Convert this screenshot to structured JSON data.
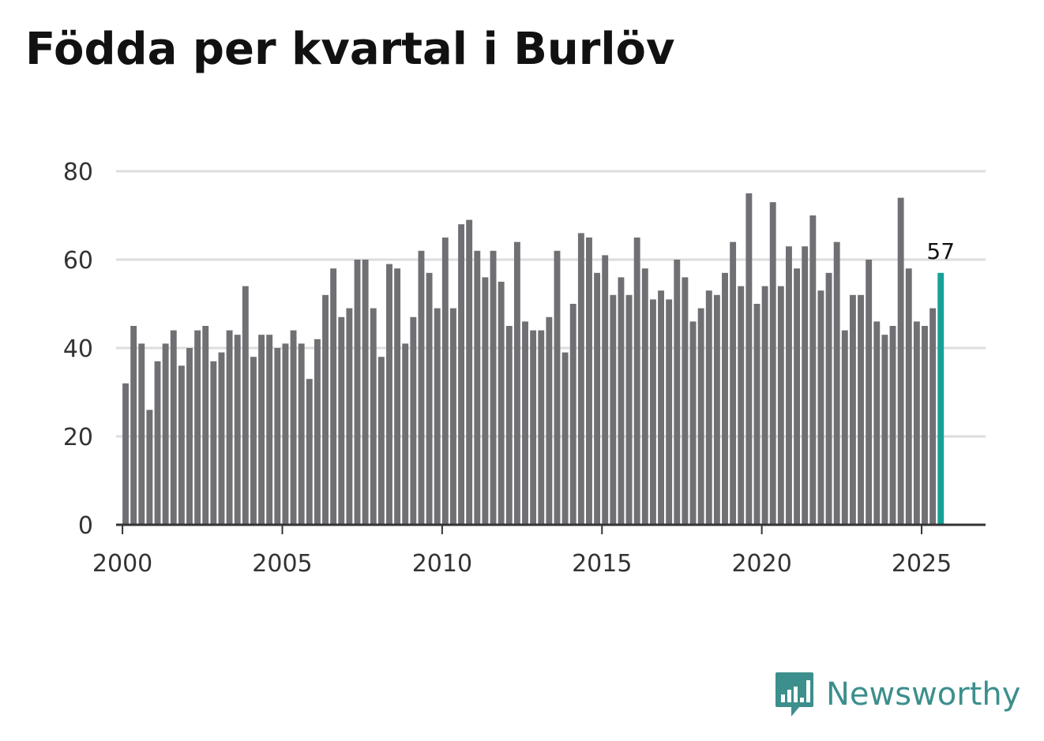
{
  "header": {
    "title": "Födda per kvartal i Burlöv"
  },
  "brand": {
    "name": "Newsworthy",
    "logo_icon": "bar-chart-speech-bubble-icon",
    "color": "#3c8f8c"
  },
  "colors": {
    "bar": "#707074",
    "highlight": "#15a197",
    "grid": "#dddddd",
    "axis": "#333333"
  },
  "chart_data": {
    "type": "bar",
    "title": "Födda per kvartal i Burlöv",
    "xlabel": "",
    "ylabel": "",
    "ylim": [
      0,
      80
    ],
    "y_ticks": [
      "0",
      "20",
      "40",
      "60",
      "80"
    ],
    "x_ticks": [
      "2000",
      "2005",
      "2010",
      "2015",
      "2020",
      "2025"
    ],
    "x_range": [
      1999.8,
      2027.0
    ],
    "grid": true,
    "start_year": 2000,
    "periods_per_year": 4,
    "values": [
      32,
      45,
      41,
      26,
      37,
      41,
      44,
      36,
      40,
      44,
      45,
      37,
      39,
      44,
      43,
      54,
      38,
      43,
      43,
      40,
      41,
      44,
      41,
      33,
      42,
      52,
      58,
      47,
      49,
      60,
      60,
      49,
      38,
      59,
      58,
      41,
      47,
      62,
      57,
      49,
      65,
      49,
      68,
      69,
      62,
      56,
      62,
      55,
      45,
      64,
      46,
      44,
      44,
      47,
      62,
      39,
      50,
      66,
      65,
      57,
      61,
      52,
      56,
      52,
      65,
      58,
      51,
      53,
      51,
      60,
      56,
      46,
      49,
      53,
      52,
      57,
      64,
      54,
      75,
      50,
      54,
      73,
      54,
      63,
      58,
      63,
      70,
      53,
      57,
      64,
      44,
      52,
      52,
      60,
      46,
      43,
      45,
      74,
      58,
      46,
      45,
      49,
      57
    ],
    "highlight": {
      "label": "57"
    }
  }
}
